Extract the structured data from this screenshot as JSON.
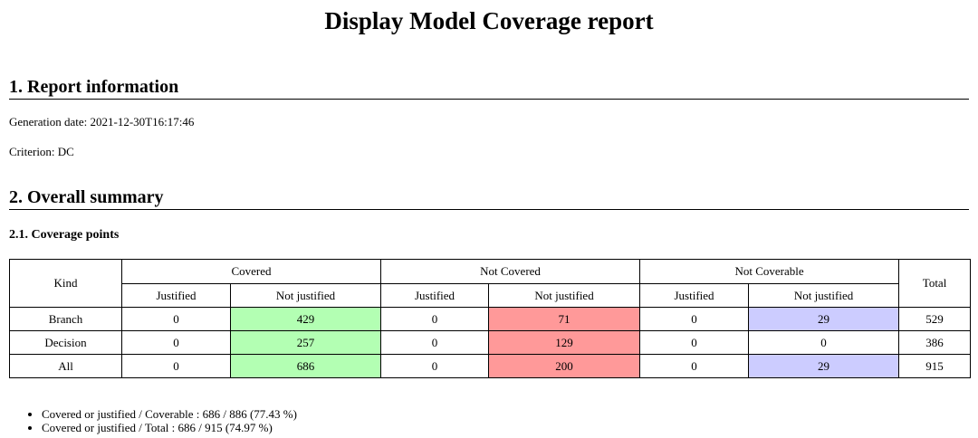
{
  "header": {
    "title": "Display Model Coverage report"
  },
  "sections": [
    {
      "heading": "1. Report information",
      "lines": [
        "Generation date: 2021-12-30T16:17:46",
        "Criterion: DC"
      ]
    },
    {
      "heading": "2. Overall summary",
      "subheading": "2.1. Coverage points"
    }
  ],
  "table": {
    "group_headers": [
      "Kind",
      "Covered",
      "Not Covered",
      "Not Coverable",
      "Total"
    ],
    "sub_headers": [
      "Justified",
      "Not justified",
      "Justified",
      "Not justified",
      "Justified",
      "Not justified"
    ],
    "rows": [
      [
        "Branch",
        0,
        429,
        0,
        71,
        0,
        29,
        529
      ],
      [
        "Decision",
        0,
        257,
        0,
        129,
        0,
        0,
        386
      ],
      [
        "All",
        0,
        686,
        0,
        200,
        0,
        29,
        915
      ]
    ]
  },
  "bullets": [
    "Covered or justified / Coverable : 686 / 886 (77.43 %)",
    "Covered or justified / Total : 686 / 915 (74.97 %)"
  ]
}
